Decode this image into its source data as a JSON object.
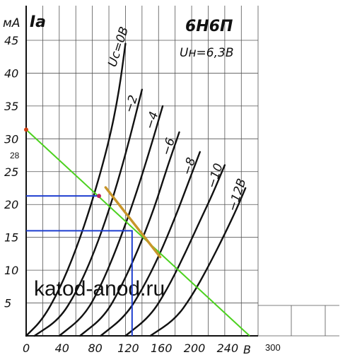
{
  "chart_data": {
    "type": "line",
    "title": "6Н6П",
    "subtitle": "Uн=6,3В",
    "ylabel_unit": "мА",
    "ylabel_symbol": "Iа",
    "xlabel_unit": "В",
    "xlim": [
      0,
      320
    ],
    "ylim": [
      0,
      47
    ],
    "x_ticks": [
      "0",
      "40",
      "80",
      "120",
      "160",
      "200",
      "240"
    ],
    "x_tick_values": [
      0,
      40,
      80,
      120,
      160,
      200,
      240
    ],
    "x_extra_tick": "300",
    "y_ticks": [
      "5",
      "10",
      "15",
      "20",
      "25",
      "30",
      "35",
      "40",
      "45"
    ],
    "y_tick_values": [
      5,
      10,
      15,
      20,
      25,
      30,
      35,
      40,
      45
    ],
    "y_extra_tick": "28",
    "grid": true,
    "series": [
      {
        "name": "Uс=0В",
        "label": "Uс=0В",
        "x": [
          0,
          20,
          40,
          60,
          80,
          100,
          112,
          120
        ],
        "y": [
          0,
          2.5,
          7,
          13,
          20.5,
          29.5,
          37,
          44.5
        ]
      },
      {
        "name": "−2",
        "label": "−2",
        "x": [
          10,
          40,
          60,
          80,
          100,
          120,
          140
        ],
        "y": [
          0,
          2.5,
          6.5,
          12,
          19,
          27.5,
          37.5
        ]
      },
      {
        "name": "−4",
        "label": "−4",
        "x": [
          40,
          70,
          90,
          110,
          130,
          150,
          165
        ],
        "y": [
          0,
          3,
          7.5,
          13.5,
          20.5,
          28.5,
          35
        ]
      },
      {
        "name": "−6",
        "label": "−6",
        "x": [
          65,
          95,
          115,
          135,
          155,
          170,
          185
        ],
        "y": [
          0,
          3,
          7.5,
          13,
          19.5,
          25.5,
          31
        ]
      },
      {
        "name": "−8",
        "label": "−8",
        "x": [
          90,
          120,
          140,
          160,
          180,
          195,
          210
        ],
        "y": [
          0,
          3,
          7,
          12,
          18,
          23,
          28
        ]
      },
      {
        "name": "−10",
        "label": "−10",
        "x": [
          120,
          150,
          170,
          190,
          210,
          225,
          240
        ],
        "y": [
          0,
          3,
          7,
          12,
          17.5,
          21.5,
          26
        ]
      },
      {
        "name": "−12В",
        "label": "−12В",
        "x": [
          150,
          180,
          200,
          220,
          240,
          255,
          265
        ],
        "y": [
          0,
          2.5,
          6,
          10.5,
          15.5,
          19.5,
          22.5
        ]
      }
    ],
    "load_line": {
      "x": [
        0,
        270
      ],
      "y": [
        31.4,
        0
      ],
      "color": "#4cd11f"
    },
    "operating_segment": {
      "x": [
        96,
        162
      ],
      "y": [
        22.6,
        12
      ],
      "color": "#c8962a"
    },
    "guides": {
      "color": "#1f3fd0",
      "point_a": {
        "x": 88,
        "y": 21.3
      },
      "point_b": {
        "x": 128,
        "y": 16
      }
    },
    "markers": [
      {
        "x": 0,
        "y": 31.4,
        "color": "#d04010"
      },
      {
        "x": 88,
        "y": 21.3,
        "color": "#c02060"
      }
    ],
    "watermark": "katod-anod.ru"
  }
}
